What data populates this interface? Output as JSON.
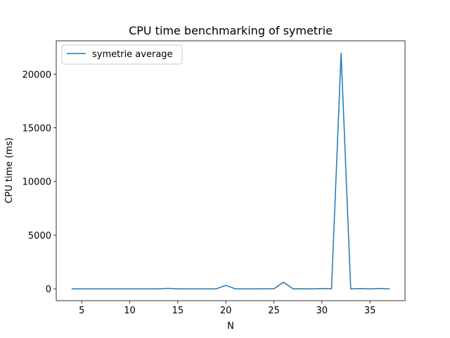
{
  "chart_data": {
    "type": "line",
    "title": "CPU time benchmarking of symetrie",
    "xlabel": "N",
    "ylabel": "CPU time (ms)",
    "xlim": [
      2.35,
      38.65
    ],
    "ylim": [
      -1100,
      23100
    ],
    "xticks": [
      5,
      10,
      15,
      20,
      25,
      30,
      35
    ],
    "yticks": [
      0,
      5000,
      10000,
      15000,
      20000
    ],
    "legend": {
      "position": "top-left"
    },
    "color": "#1f77b4",
    "series": [
      {
        "name": "symetrie average",
        "x": [
          4,
          5,
          6,
          7,
          8,
          9,
          10,
          11,
          12,
          13,
          14,
          15,
          16,
          17,
          18,
          19,
          20,
          21,
          22,
          23,
          24,
          25,
          26,
          27,
          28,
          29,
          30,
          31,
          32,
          33,
          34,
          35,
          36,
          37
        ],
        "y": [
          0,
          0,
          0,
          0,
          0,
          0,
          0,
          0,
          0,
          0,
          50,
          0,
          0,
          0,
          0,
          0,
          320,
          0,
          0,
          0,
          10,
          10,
          620,
          0,
          10,
          0,
          30,
          10,
          21950,
          0,
          30,
          0,
          40,
          0
        ]
      }
    ]
  }
}
